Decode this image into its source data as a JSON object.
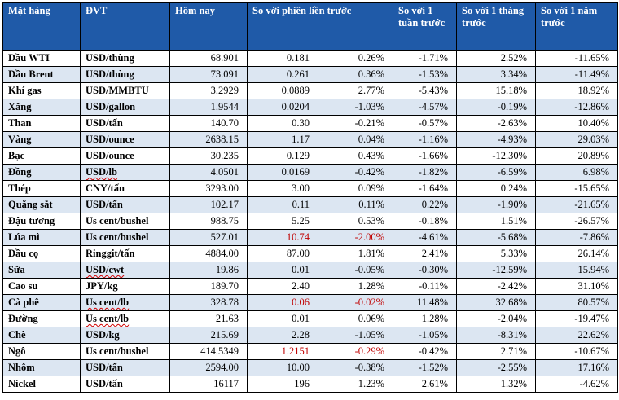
{
  "headers": [
    "Mặt hàng",
    "ĐVT",
    "Hôm nay",
    "So với phiên liền trước",
    "So với 1 tuần trước",
    "So với 1 tháng trước",
    "So với 1 năm trước"
  ],
  "rows": [
    {
      "name": "Dầu WTI",
      "unit": "USD/thùng",
      "today": "68.901",
      "change": "0.181",
      "pct": "0.26%",
      "week": "-1.71%",
      "month": "2.52%",
      "year": "-11.65%"
    },
    {
      "name": "Dầu Brent",
      "unit": "USD/thùng",
      "today": "73.091",
      "change": "0.261",
      "pct": "0.36%",
      "week": "-1.53%",
      "month": "3.34%",
      "year": "-11.49%"
    },
    {
      "name": "Khí gas",
      "unit": "USD/MMBTU",
      "today": "3.2929",
      "change": "0.0889",
      "pct": "2.77%",
      "week": "-5.43%",
      "month": "15.18%",
      "year": "18.92%"
    },
    {
      "name": "Xăng",
      "unit": "USD/gallon",
      "today": "1.9544",
      "change": "0.0204",
      "pct": "-1.03%",
      "week": "-4.57%",
      "month": "-0.19%",
      "year": "-12.86%"
    },
    {
      "name": "Than",
      "unit": "USD/tấn",
      "today": "140.70",
      "change": "0.30",
      "pct": "-0.21%",
      "week": "-0.57%",
      "month": "-2.63%",
      "year": "10.40%"
    },
    {
      "name": "Vàng",
      "unit": "USD/ounce",
      "today": "2638.15",
      "change": "1.17",
      "pct": "0.04%",
      "week": "-1.16%",
      "month": "-4.93%",
      "year": "29.03%"
    },
    {
      "name": "Bạc",
      "unit": "USD/ounce",
      "today": "30.235",
      "change": "0.129",
      "pct": "0.43%",
      "week": "-1.66%",
      "month": "-12.30%",
      "year": "20.89%"
    },
    {
      "name": "Đồng",
      "unit": "USD/lb",
      "today": "4.0501",
      "change": "0.0169",
      "pct": "-0.42%",
      "week": "-1.82%",
      "month": "-6.59%",
      "year": "6.98%"
    },
    {
      "name": "Thép",
      "unit": "CNY/tấn",
      "today": "3293.00",
      "change": "3.00",
      "pct": "0.09%",
      "week": "-1.64%",
      "month": "0.24%",
      "year": "-15.65%"
    },
    {
      "name": "Quặng sắt",
      "unit": "USD/tấn",
      "today": "102.17",
      "change": "0.11",
      "pct": "0.11%",
      "week": "0.22%",
      "month": "-1.90%",
      "year": "-21.65%"
    },
    {
      "name": "Đậu tương",
      "unit": "Us cent/bushel",
      "today": "988.75",
      "change": "5.25",
      "pct": "0.53%",
      "week": "-0.18%",
      "month": "1.51%",
      "year": "-26.57%"
    },
    {
      "name": "Lúa mì",
      "unit": "Us cent/bushel",
      "today": "527.01",
      "change": "10.74",
      "pct": "-2.00%",
      "week": "-4.61%",
      "month": "-5.68%",
      "year": "-7.86%"
    },
    {
      "name": "Dầu cọ",
      "unit": "Ringgit/tấn",
      "today": "4884.00",
      "change": "87.00",
      "pct": "1.81%",
      "week": "2.41%",
      "month": "5.33%",
      "year": "26.14%"
    },
    {
      "name": "Sữa",
      "unit": "USD/cwt",
      "today": "19.86",
      "change": "0.01",
      "pct": "-0.05%",
      "week": "-0.30%",
      "month": "-12.59%",
      "year": "15.94%"
    },
    {
      "name": "Cao su",
      "unit": "JPY/kg",
      "today": "189.70",
      "change": "2.40",
      "pct": "1.28%",
      "week": "-0.11%",
      "month": "-2.42%",
      "year": "31.10%"
    },
    {
      "name": "Cà phê",
      "unit": "Us cent/lb",
      "today": "328.78",
      "change": "0.06",
      "pct": "-0.02%",
      "week": "11.48%",
      "month": "32.68%",
      "year": "80.57%"
    },
    {
      "name": "Đường",
      "unit": "Us cent/lb",
      "today": "21.63",
      "change": "0.01",
      "pct": "0.06%",
      "week": "1.28%",
      "month": "-2.04%",
      "year": "-19.47%"
    },
    {
      "name": "Chè",
      "unit": "USD/kg",
      "today": "215.69",
      "change": "2.28",
      "pct": "-1.05%",
      "week": "-1.05%",
      "month": "-8.31%",
      "year": "22.62%"
    },
    {
      "name": "Ngô",
      "unit": "Us cent/bushel",
      "today": "414.5349",
      "change": "1.2151",
      "pct": "-0.29%",
      "week": "-0.42%",
      "month": "2.71%",
      "year": "-10.67%"
    },
    {
      "name": "Nhôm",
      "unit": "USD/tấn",
      "today": "2594.00",
      "change": "10.00",
      "pct": "-0.38%",
      "week": "-1.52%",
      "month": "-2.55%",
      "year": "17.16%"
    },
    {
      "name": "Nickel",
      "unit": "USD/tấn",
      "today": "16117",
      "change": "196",
      "pct": "1.23%",
      "week": "2.61%",
      "month": "1.32%",
      "year": "-4.62%"
    }
  ],
  "colors": {
    "header_bg": "#1f5aa8",
    "stripe": "#dce6f2",
    "highlight_red": "#c00000"
  }
}
